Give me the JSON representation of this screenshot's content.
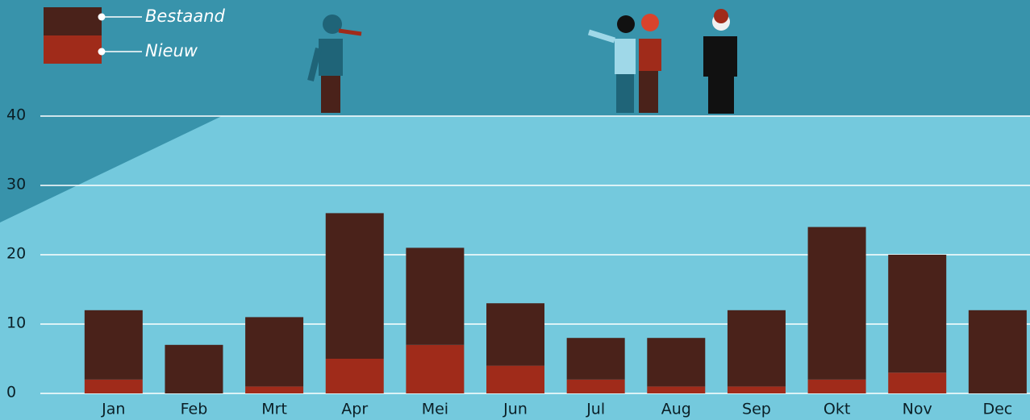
{
  "chart_data": {
    "type": "stacked-bar",
    "categories": [
      "Jan",
      "Feb",
      "Mrt",
      "Apr",
      "Mei",
      "Jun",
      "Jul",
      "Aug",
      "Sep",
      "Okt",
      "Nov",
      "Dec"
    ],
    "series": [
      {
        "name": "Nieuw",
        "color": "#a02b1a",
        "values": [
          2,
          0,
          1,
          5,
          7,
          4,
          2,
          1,
          1,
          2,
          3,
          0
        ]
      },
      {
        "name": "Bestaand",
        "color": "#4a221a",
        "values": [
          10,
          7,
          10,
          21,
          14,
          9,
          6,
          7,
          11,
          22,
          17,
          12
        ]
      }
    ],
    "ylim": [
      0,
      40
    ],
    "yticks": [
      0,
      10,
      20,
      30,
      40
    ],
    "grid": true
  }
}
